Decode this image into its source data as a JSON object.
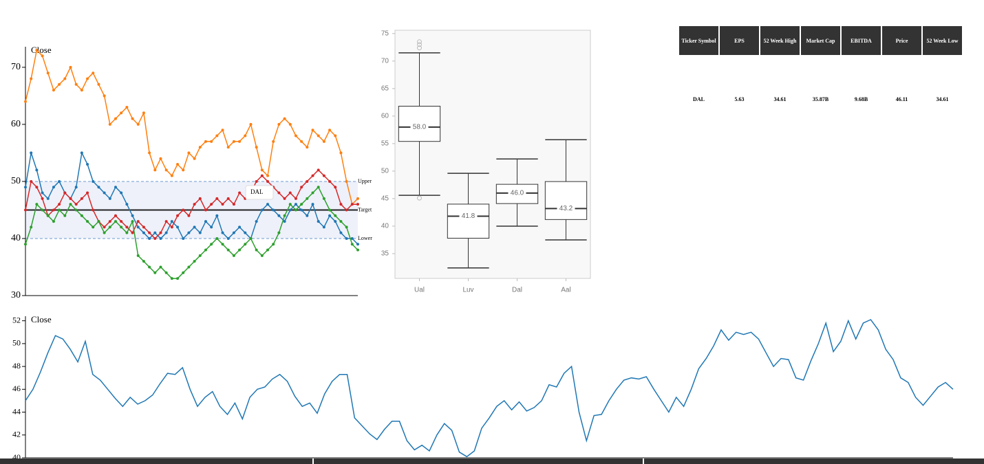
{
  "chart_data": [
    {
      "type": "line",
      "y_label": "Close",
      "ylim": [
        30,
        73.6
      ],
      "yticks": [
        30,
        40,
        50,
        60,
        70
      ],
      "band": {
        "upper": 50,
        "target": 45,
        "lower": 40,
        "upper_label": "Upper",
        "target_label": "Target",
        "lower_label": "Lower",
        "color": "#eef1fa"
      },
      "tooltip": "DAL",
      "series": [
        {
          "color": "#ff7f0e",
          "values": [
            64,
            68,
            73,
            72,
            69,
            66,
            67,
            68,
            70,
            67,
            66,
            68,
            69,
            67,
            65,
            60,
            61,
            62,
            63,
            61,
            60,
            62,
            55,
            52,
            54,
            52,
            51,
            53,
            52,
            55,
            54,
            56,
            57,
            57,
            58,
            59,
            56,
            57,
            57,
            58,
            60,
            56,
            52,
            51,
            57,
            60,
            61,
            60,
            58,
            57,
            56,
            59,
            58,
            57,
            59,
            58,
            55,
            50,
            46,
            47
          ]
        },
        {
          "color": "#1f77b4",
          "values": [
            49,
            55,
            52,
            48,
            47,
            49,
            50,
            48,
            47,
            49,
            55,
            53,
            50,
            49,
            48,
            47,
            49,
            48,
            46,
            44,
            42,
            41,
            40,
            41,
            40,
            41,
            43,
            42,
            40,
            41,
            42,
            41,
            43,
            42,
            44,
            41,
            40,
            41,
            42,
            41,
            40,
            43,
            45,
            46,
            45,
            44,
            43,
            45,
            46,
            45,
            44,
            46,
            43,
            42,
            44,
            43,
            41,
            40,
            40,
            39
          ]
        },
        {
          "color": "#d62728",
          "values": [
            45,
            50,
            49,
            47,
            44,
            45,
            46,
            48,
            47,
            46,
            47,
            48,
            45,
            43,
            42,
            43,
            44,
            43,
            42,
            41,
            43,
            42,
            41,
            40,
            41,
            43,
            42,
            44,
            45,
            44,
            46,
            47,
            45,
            46,
            47,
            46,
            47,
            46,
            48,
            47,
            48,
            50,
            51,
            50,
            49,
            48,
            47,
            48,
            47,
            49,
            50,
            51,
            52,
            51,
            50,
            49,
            46,
            45,
            46,
            46
          ]
        },
        {
          "color": "#2ca02c",
          "values": [
            39,
            42,
            46,
            45,
            44,
            43,
            45,
            44,
            46,
            45,
            44,
            43,
            42,
            43,
            41,
            42,
            43,
            42,
            41,
            43,
            37,
            36,
            35,
            34,
            35,
            34,
            33,
            33,
            34,
            35,
            36,
            37,
            38,
            39,
            40,
            39,
            38,
            37,
            38,
            39,
            40,
            38,
            37,
            38,
            39,
            41,
            44,
            46,
            45,
            46,
            47,
            48,
            49,
            47,
            45,
            44,
            43,
            42,
            39,
            38
          ]
        }
      ]
    },
    {
      "type": "box",
      "categories": [
        "Ual",
        "Luv",
        "Dal",
        "Aal"
      ],
      "ylim": [
        30.5,
        75.6
      ],
      "yticks": [
        35,
        40,
        45,
        50,
        55,
        60,
        65,
        70,
        75
      ],
      "boxes": [
        {
          "whislo": 45.6,
          "q1": 55.4,
          "med": 58.0,
          "med_label": "58.0",
          "q3": 61.8,
          "whishi": 71.5,
          "fliers": [
            73.5,
            73,
            72.4,
            45.1
          ]
        },
        {
          "whislo": 32.4,
          "q1": 37.8,
          "med": 41.8,
          "med_label": "41.8",
          "q3": 44.0,
          "whishi": 49.6,
          "fliers": []
        },
        {
          "whislo": 40.0,
          "q1": 44.1,
          "med": 46.0,
          "med_label": "46.0",
          "q3": 47.6,
          "whishi": 52.2,
          "fliers": []
        },
        {
          "whislo": 37.5,
          "q1": 41.2,
          "med": 43.2,
          "med_label": "43.2",
          "q3": 48.1,
          "whishi": 55.7,
          "fliers": []
        }
      ]
    },
    {
      "type": "line",
      "y_label": "Close",
      "ylim": [
        40,
        52.4
      ],
      "yticks": [
        40,
        42,
        44,
        46,
        48,
        50,
        52
      ],
      "series": [
        {
          "color": "#1f77b4",
          "values": [
            45,
            46,
            47.5,
            49.2,
            50.7,
            50.4,
            49.5,
            48.4,
            50.2,
            47.3,
            46.8,
            46,
            45.2,
            44.5,
            45.3,
            44.7,
            45,
            45.5,
            46.5,
            47.4,
            47.3,
            47.9,
            46,
            44.5,
            45.3,
            45.8,
            44.5,
            43.8,
            44.8,
            43.4,
            45.3,
            46,
            46.2,
            46.9,
            47.3,
            46.7,
            45.4,
            44.5,
            44.8,
            43.9,
            45.6,
            46.7,
            47.3,
            47.3,
            43.5,
            42.8,
            42.1,
            41.6,
            42.5,
            43.2,
            43.2,
            41.5,
            40.7,
            41.1,
            40.6,
            42,
            43,
            42.4,
            40.5,
            40.1,
            40.6,
            42.6,
            43.5,
            44.5,
            45,
            44.2,
            44.9,
            44.1,
            44.4,
            45,
            46.4,
            46.2,
            47.4,
            48,
            44,
            41.5,
            43.7,
            43.8,
            45,
            46,
            46.8,
            47,
            46.9,
            47.1,
            46,
            45,
            44,
            45.3,
            44.5,
            46,
            47.8,
            48.7,
            49.8,
            51.2,
            50.3,
            51,
            50.8,
            51,
            50.4,
            49.2,
            48,
            48.7,
            48.6,
            47,
            46.8,
            48.5,
            50,
            51.8,
            49.3,
            50.2,
            52,
            50.4,
            51.8,
            52.1,
            51.2,
            49.5,
            48.6,
            47,
            46.6,
            45.3,
            44.6,
            45.4,
            46.2,
            46.6,
            46
          ]
        }
      ]
    }
  ],
  "table": {
    "header": [
      "Ticker Symbol",
      "EPS",
      "52 Week High",
      "Market Cap",
      "EBITDA",
      "Price",
      "52 Week Low"
    ],
    "rows": [
      [
        "DAL",
        "5.63",
        "34.61",
        "35.87B",
        "9.68B",
        "46.11",
        "34.61"
      ]
    ]
  }
}
